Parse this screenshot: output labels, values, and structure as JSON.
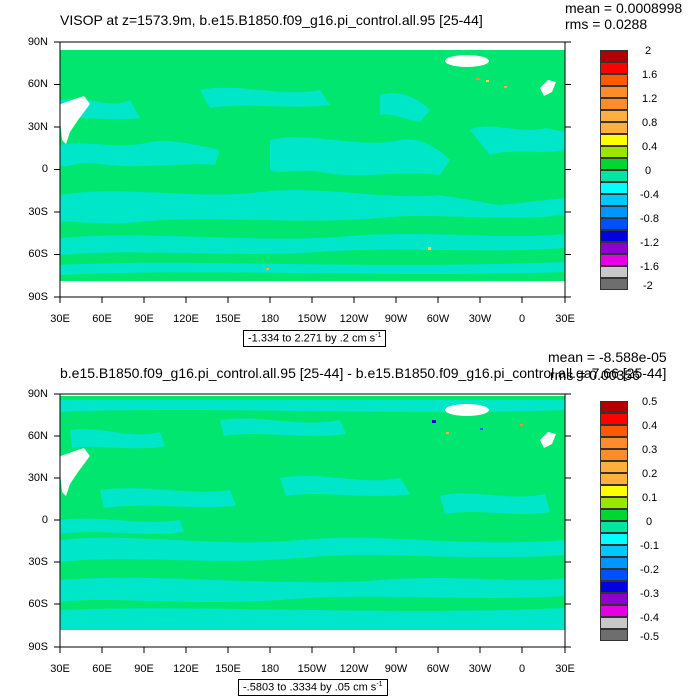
{
  "panels": [
    {
      "title": "VISOP at z=1573.9m, b.e15.B1850.f09_g16.pi_control.all.95 [25-44]",
      "mean": "mean = 0.0008998",
      "rms": "rms = 0.0288",
      "range_label": "-1.334 to 2.271 by .2 cm s",
      "range_sup": "-1",
      "colorbar_labels": [
        "2",
        "1.6",
        "1.2",
        "0.8",
        "0.4",
        "0",
        "-0.4",
        "-0.8",
        "-1.2",
        "-1.6",
        "-2"
      ]
    },
    {
      "title": "b.e15.B1850.f09_g16.pi_control.all.95 [25-44] - b.e15.B1850.f09_g16.pi_control.all.ga7.66 [25-44]",
      "mean": "mean = -8.588e-05",
      "rms": "rms = 0.00356",
      "range_label": "-.5803 to .3334 by .05 cm s",
      "range_sup": "-1",
      "colorbar_labels": [
        "0.5",
        "0.4",
        "0.3",
        "0.2",
        "0.1",
        "0",
        "-0.1",
        "-0.2",
        "-0.3",
        "-0.4",
        "-0.5"
      ]
    }
  ],
  "lat_labels": [
    "90N",
    "60N",
    "30N",
    "0",
    "30S",
    "60S",
    "90S"
  ],
  "lon_labels": [
    "30E",
    "60E",
    "90E",
    "120E",
    "150E",
    "180",
    "150W",
    "120W",
    "90W",
    "60W",
    "30W",
    "0",
    "30E"
  ],
  "colorbar_colors": [
    "#b00000",
    "#ff0000",
    "#ff5a00",
    "#ff8c2a",
    "#ffb03c",
    "#ffd24a",
    "#ffff00",
    "#9be600",
    "#00d632",
    "#00e6a0",
    "#00ffff",
    "#00c8ff",
    "#0096ff",
    "#0050ff",
    "#0000e0",
    "#8c00d2",
    "#e600e6",
    "#c8c8c8",
    "#6e6e6e"
  ],
  "colors": {
    "base_field": "#00e66e",
    "weak_negative": "#00e6c8",
    "land_white": "#ffffff"
  }
}
